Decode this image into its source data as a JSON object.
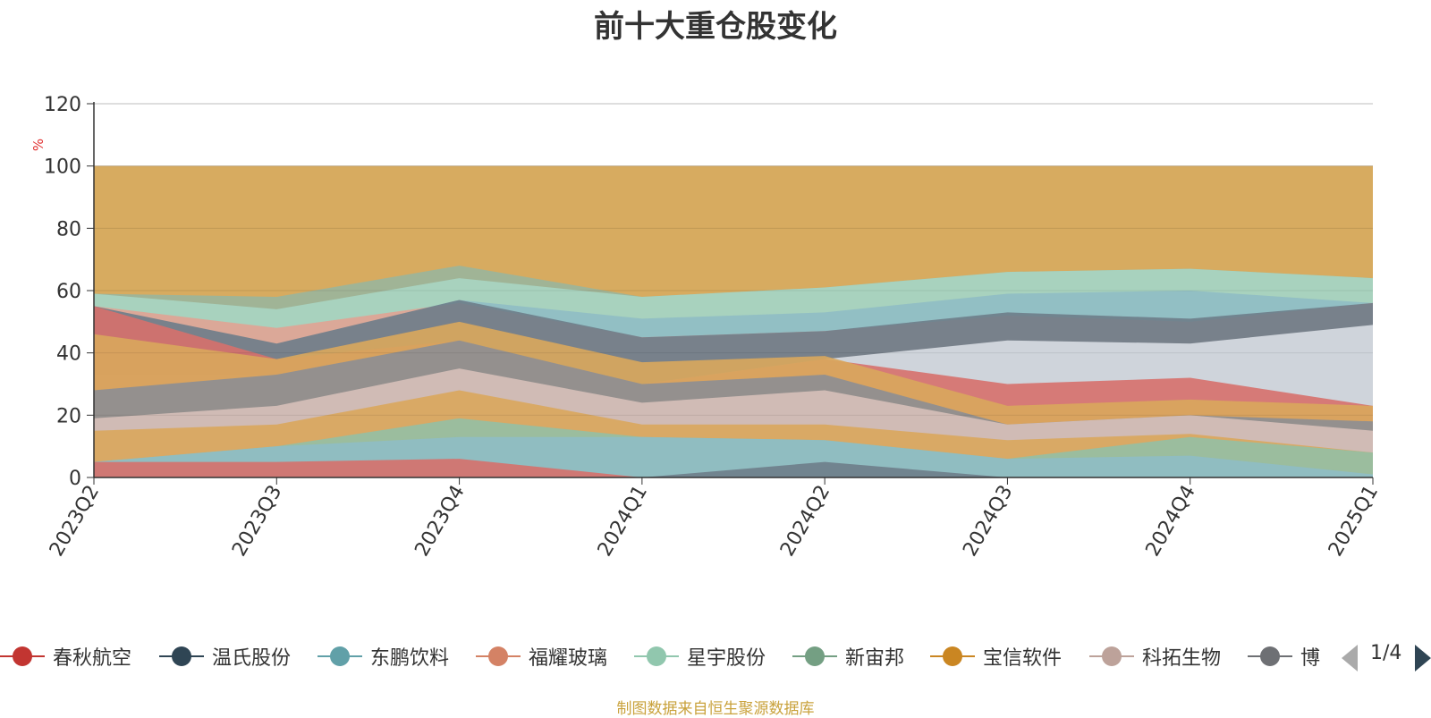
{
  "title": "前十大重仓股变化",
  "source": "制图数据来自恒生聚源数据库",
  "pager": {
    "text": "1/4"
  },
  "chart_data": {
    "type": "area",
    "stacked": false,
    "title": "前十大重仓股变化",
    "ylabel": "%",
    "ylim": [
      0,
      120
    ],
    "yticks": [
      "0",
      "20",
      "40",
      "60",
      "80",
      "100",
      "120"
    ],
    "categories": [
      "2023Q2",
      "2023Q3",
      "2023Q4",
      "2024Q1",
      "2024Q2",
      "2024Q3",
      "2024Q4",
      "2025Q1"
    ],
    "grid": true,
    "legend_position": "bottom",
    "series": [
      {
        "name": "",
        "color": "#d4a453",
        "values": [
          100,
          100,
          100,
          100,
          100,
          100,
          100,
          100
        ]
      },
      {
        "name": "",
        "color": "#9ab59c",
        "values": [
          59,
          58,
          68,
          58,
          61,
          66,
          67,
          64
        ]
      },
      {
        "name": "星宇股份",
        "color": "#a8d5c2",
        "values": [
          59,
          54,
          64,
          58,
          61,
          66,
          67,
          64
        ]
      },
      {
        "name": "东鹏饮料",
        "color": "#8fbcc4",
        "values": [
          55,
          43,
          57,
          51,
          53,
          59,
          60,
          56
        ]
      },
      {
        "name": "福耀玻璃",
        "color": "#e0a394",
        "values": [
          55,
          48,
          56,
          45,
          47,
          52,
          50,
          56
        ]
      },
      {
        "name": "温氏股份",
        "color": "#6e7d8a",
        "values": [
          55,
          43,
          57,
          45,
          47,
          53,
          51,
          56
        ]
      },
      {
        "name": "",
        "color": "#d8dde3",
        "values": [
          33,
          33,
          44,
          30,
          38,
          44,
          43,
          49
        ]
      },
      {
        "name": "春秋航空",
        "color": "#d6706c",
        "values": [
          55,
          38,
          44,
          30,
          38,
          30,
          32,
          23
        ]
      },
      {
        "name": "宝信软件",
        "color": "#d9a75c",
        "values": [
          46,
          38,
          50,
          37,
          39,
          23,
          25,
          23
        ]
      },
      {
        "name": "博",
        "color": "#8c8e94",
        "values": [
          28,
          33,
          44,
          30,
          33,
          17,
          20,
          18
        ]
      },
      {
        "name": "科拓生物",
        "color": "#d6c0b9",
        "values": [
          19,
          23,
          35,
          24,
          28,
          17,
          20,
          15
        ]
      },
      {
        "name": "",
        "color": "#d9a75c",
        "values": [
          15,
          17,
          28,
          17,
          17,
          12,
          14,
          8
        ]
      },
      {
        "name": "新宙邦",
        "color": "#93bfa4",
        "values": [
          5,
          10,
          19,
          13,
          12,
          6,
          13,
          8
        ]
      },
      {
        "name": "",
        "color": "#8fbcc4",
        "values": [
          5,
          10,
          13,
          13,
          12,
          6,
          7,
          1
        ]
      },
      {
        "name": "",
        "color": "#d6706c",
        "values": [
          5,
          5,
          6,
          0,
          0,
          0,
          0,
          0
        ]
      },
      {
        "name": "",
        "color": "#6e7d8a",
        "values": [
          0,
          0,
          0,
          0,
          5,
          0,
          0,
          0
        ]
      }
    ]
  },
  "legend": [
    {
      "label": "春秋航空",
      "color": "#c23531"
    },
    {
      "label": "温氏股份",
      "color": "#2f4554"
    },
    {
      "label": "东鹏饮料",
      "color": "#61a0a8"
    },
    {
      "label": "福耀玻璃",
      "color": "#d48265"
    },
    {
      "label": "星宇股份",
      "color": "#91c7ae"
    },
    {
      "label": "新宙邦",
      "color": "#749f83"
    },
    {
      "label": "宝信软件",
      "color": "#ca8622"
    },
    {
      "label": "科拓生物",
      "color": "#bda29a"
    },
    {
      "label": "博",
      "color": "#6e7074"
    }
  ]
}
